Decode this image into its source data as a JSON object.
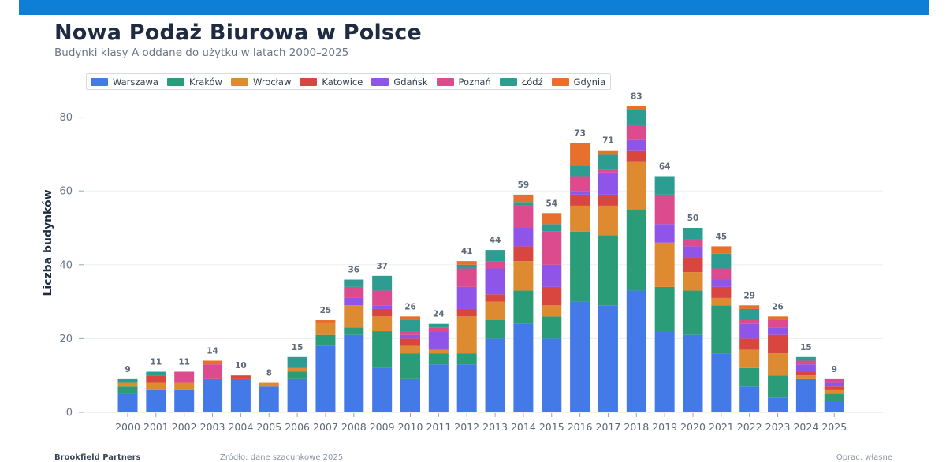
{
  "header": {
    "title": "Nowa Podaż Biurowa w Polsce",
    "subtitle": "Budynki klasy A oddane do użytku w latach 2000–2025",
    "bar_color": "#0d7fd6"
  },
  "footer": {
    "source": "Brookfield Partners",
    "note": "Źródło: dane szacunkowe 2025",
    "credit": "Oprac. własne"
  },
  "chart_data": {
    "type": "bar",
    "stacked": true,
    "title": "Nowa Podaż Biurowa w Polsce",
    "subtitle": "Budynki klasy A oddane do użytku w latach 2000–2025",
    "xlabel": "",
    "ylabel": "Liczba budynków",
    "ylim": [
      0,
      86
    ],
    "yticks": [
      0,
      20,
      40,
      60,
      80
    ],
    "grid": true,
    "legend_position": "top-left",
    "categories": [
      "2000",
      "2001",
      "2002",
      "2003",
      "2004",
      "2005",
      "2006",
      "2007",
      "2008",
      "2009",
      "2010",
      "2011",
      "2012",
      "2013",
      "2014",
      "2015",
      "2016",
      "2017",
      "2018",
      "2019",
      "2020",
      "2021",
      "2022",
      "2023",
      "2024",
      "2025"
    ],
    "totals": [
      9,
      11,
      11,
      14,
      10,
      8,
      15,
      25,
      36,
      37,
      26,
      24,
      41,
      44,
      59,
      54,
      73,
      71,
      83,
      64,
      50,
      45,
      29,
      26,
      15,
      9
    ],
    "series": [
      {
        "name": "Warszawa",
        "color": "#4479e8",
        "values": [
          5,
          6,
          6,
          9,
          9,
          7,
          9,
          18,
          21,
          12,
          9,
          13,
          13,
          20,
          24,
          20,
          30,
          29,
          33,
          22,
          21,
          16,
          7,
          4,
          9,
          3
        ]
      },
      {
        "name": "Kraków",
        "color": "#2a9d78",
        "values": [
          2,
          0,
          0,
          0,
          0,
          0,
          2,
          3,
          2,
          10,
          7,
          3,
          3,
          5,
          9,
          6,
          19,
          19,
          22,
          12,
          12,
          13,
          5,
          6,
          0,
          2
        ]
      },
      {
        "name": "Wrocław",
        "color": "#de8a30",
        "values": [
          1,
          2,
          2,
          0,
          0,
          1,
          1,
          3,
          6,
          4,
          2,
          1,
          10,
          5,
          8,
          3,
          7,
          8,
          13,
          12,
          5,
          2,
          5,
          6,
          1,
          1
        ]
      },
      {
        "name": "Katowice",
        "color": "#d9453f",
        "values": [
          0,
          2,
          0,
          0,
          1,
          0,
          0,
          0,
          0,
          2,
          2,
          0,
          2,
          2,
          4,
          5,
          3,
          3,
          3,
          0,
          4,
          3,
          3,
          5,
          1,
          1
        ]
      },
      {
        "name": "Gdańsk",
        "color": "#8f55e8",
        "values": [
          0,
          0,
          0,
          0,
          0,
          0,
          0,
          0,
          2,
          1,
          1,
          5,
          6,
          7,
          5,
          6,
          1,
          6,
          3,
          5,
          3,
          2,
          4,
          2,
          2,
          1
        ]
      },
      {
        "name": "Poznań",
        "color": "#db4b8d",
        "values": [
          0,
          0,
          3,
          4,
          0,
          0,
          0,
          0,
          3,
          4,
          1,
          1,
          5,
          2,
          6,
          9,
          4,
          1,
          4,
          8,
          2,
          3,
          1,
          2,
          1,
          1
        ]
      },
      {
        "name": "Łódź",
        "color": "#2d9d91",
        "values": [
          1,
          1,
          0,
          0,
          0,
          0,
          3,
          0,
          2,
          4,
          3,
          1,
          1,
          3,
          1,
          2,
          3,
          4,
          4,
          5,
          3,
          4,
          3,
          0,
          1,
          0
        ]
      },
      {
        "name": "Gdynia",
        "color": "#e8702d",
        "values": [
          0,
          0,
          0,
          1,
          0,
          0,
          0,
          1,
          0,
          0,
          1,
          0,
          1,
          0,
          2,
          3,
          6,
          1,
          1,
          0,
          0,
          2,
          1,
          1,
          0,
          0
        ]
      }
    ]
  }
}
